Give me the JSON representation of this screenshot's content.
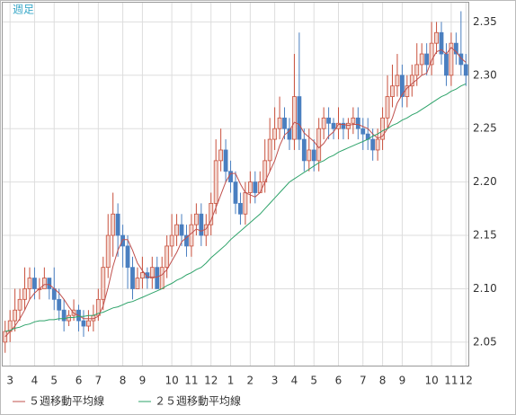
{
  "chart_data": {
    "type": "candlestick",
    "title": "週足",
    "categories": [
      null,
      "3",
      null,
      null,
      null,
      null,
      "4",
      null,
      null,
      null,
      "5",
      null,
      null,
      null,
      null,
      "6",
      null,
      null,
      null,
      "7",
      null,
      null,
      null,
      null,
      "8",
      null,
      null,
      null,
      "9",
      null,
      null,
      null,
      null,
      null,
      "10",
      null,
      null,
      null,
      "11",
      null,
      null,
      null,
      "12",
      null,
      null,
      null,
      "1",
      null,
      null,
      null,
      "2",
      null,
      null,
      null,
      null,
      "3",
      null,
      null,
      null,
      "4",
      null,
      null,
      null,
      "5",
      null,
      null,
      null,
      null,
      "6",
      null,
      null,
      null,
      null,
      "7",
      null,
      null,
      null,
      "8",
      null,
      null,
      null,
      "9",
      null,
      null,
      null,
      null,
      null,
      "10",
      null,
      null,
      null,
      "11",
      null,
      null,
      "12"
    ],
    "open": [
      2.05,
      2.06,
      2.07,
      2.08,
      2.09,
      2.1,
      2.11,
      2.1,
      2.1,
      2.11,
      2.1,
      2.09,
      2.08,
      2.07,
      2.075,
      2.08,
      2.07,
      2.065,
      2.07,
      2.075,
      2.09,
      2.12,
      2.15,
      2.17,
      2.15,
      2.14,
      2.12,
      2.1,
      2.11,
      2.115,
      2.11,
      2.12,
      2.1,
      2.12,
      2.14,
      2.15,
      2.16,
      2.15,
      2.14,
      2.16,
      2.17,
      2.15,
      2.16,
      2.18,
      2.22,
      2.23,
      2.21,
      2.2,
      2.18,
      2.17,
      2.19,
      2.2,
      2.19,
      2.2,
      2.22,
      2.24,
      2.25,
      2.26,
      2.25,
      2.24,
      2.28,
      2.24,
      2.22,
      2.23,
      2.22,
      2.25,
      2.26,
      2.255,
      2.25,
      2.255,
      2.25,
      2.255,
      2.26,
      2.25,
      2.245,
      2.24,
      2.23,
      2.24,
      2.26,
      2.28,
      2.29,
      2.3,
      2.28,
      2.29,
      2.3,
      2.31,
      2.32,
      2.31,
      2.33,
      2.34,
      2.32,
      2.3,
      2.33,
      2.32,
      2.31
    ],
    "high": [
      2.07,
      2.08,
      2.1,
      2.1,
      2.12,
      2.12,
      2.12,
      2.11,
      2.12,
      2.11,
      2.12,
      2.1,
      2.09,
      2.08,
      2.09,
      2.085,
      2.08,
      2.08,
      2.085,
      2.1,
      2.13,
      2.17,
      2.19,
      2.18,
      2.16,
      2.15,
      2.13,
      2.12,
      2.13,
      2.12,
      2.13,
      2.13,
      2.13,
      2.15,
      2.17,
      2.17,
      2.17,
      2.16,
      2.17,
      2.18,
      2.18,
      2.17,
      2.19,
      2.24,
      2.25,
      2.24,
      2.22,
      2.21,
      2.19,
      2.2,
      2.21,
      2.21,
      2.21,
      2.24,
      2.26,
      2.27,
      2.28,
      2.27,
      2.26,
      2.32,
      2.34,
      2.25,
      2.25,
      2.24,
      2.26,
      2.27,
      2.27,
      2.26,
      2.27,
      2.26,
      2.26,
      2.27,
      2.27,
      2.26,
      2.26,
      2.25,
      2.25,
      2.27,
      2.3,
      2.31,
      2.32,
      2.31,
      2.3,
      2.31,
      2.33,
      2.33,
      2.33,
      2.35,
      2.35,
      2.35,
      2.33,
      2.34,
      2.34,
      2.36,
      2.32
    ],
    "low": [
      2.04,
      2.05,
      2.06,
      2.07,
      2.08,
      2.09,
      2.09,
      2.09,
      2.1,
      2.09,
      2.08,
      2.07,
      2.06,
      2.065,
      2.07,
      2.06,
      2.055,
      2.06,
      2.06,
      2.07,
      2.08,
      2.11,
      2.13,
      2.13,
      2.12,
      2.1,
      2.09,
      2.1,
      2.1,
      2.1,
      2.1,
      2.1,
      2.1,
      2.11,
      2.13,
      2.14,
      2.14,
      2.13,
      2.13,
      2.15,
      2.14,
      2.14,
      2.15,
      2.17,
      2.21,
      2.2,
      2.19,
      2.17,
      2.16,
      2.16,
      2.18,
      2.18,
      2.19,
      2.19,
      2.21,
      2.23,
      2.24,
      2.24,
      2.23,
      2.23,
      2.23,
      2.21,
      2.21,
      2.21,
      2.21,
      2.24,
      2.24,
      2.24,
      2.24,
      2.24,
      2.24,
      2.245,
      2.24,
      2.23,
      2.23,
      2.22,
      2.22,
      2.23,
      2.25,
      2.27,
      2.28,
      2.27,
      2.27,
      2.28,
      2.29,
      2.3,
      2.3,
      2.3,
      2.32,
      2.31,
      2.29,
      2.29,
      2.31,
      2.3,
      2.29
    ],
    "close": [
      2.06,
      2.07,
      2.08,
      2.09,
      2.1,
      2.11,
      2.1,
      2.1,
      2.11,
      2.1,
      2.09,
      2.08,
      2.07,
      2.075,
      2.08,
      2.07,
      2.065,
      2.07,
      2.075,
      2.09,
      2.12,
      2.15,
      2.17,
      2.15,
      2.14,
      2.12,
      2.1,
      2.11,
      2.115,
      2.11,
      2.12,
      2.1,
      2.12,
      2.14,
      2.15,
      2.16,
      2.15,
      2.14,
      2.16,
      2.17,
      2.15,
      2.16,
      2.18,
      2.22,
      2.23,
      2.21,
      2.2,
      2.18,
      2.17,
      2.19,
      2.2,
      2.19,
      2.2,
      2.22,
      2.24,
      2.25,
      2.26,
      2.25,
      2.24,
      2.28,
      2.24,
      2.22,
      2.23,
      2.22,
      2.25,
      2.26,
      2.255,
      2.25,
      2.255,
      2.25,
      2.255,
      2.26,
      2.25,
      2.245,
      2.24,
      2.23,
      2.24,
      2.26,
      2.28,
      2.29,
      2.3,
      2.28,
      2.29,
      2.3,
      2.31,
      2.32,
      2.31,
      2.33,
      2.34,
      2.32,
      2.3,
      2.33,
      2.32,
      2.31,
      2.3
    ],
    "up_color": "#c8503c",
    "down_color": "#4a7fc0",
    "series": [
      {
        "name": "５週移動平均線",
        "color": "#c0504d",
        "values": [
          2.055,
          2.06,
          2.065,
          2.072,
          2.08,
          2.09,
          2.096,
          2.1,
          2.104,
          2.104,
          2.1,
          2.096,
          2.09,
          2.083,
          2.077,
          2.075,
          2.072,
          2.072,
          2.072,
          2.074,
          2.084,
          2.101,
          2.121,
          2.136,
          2.146,
          2.146,
          2.136,
          2.124,
          2.117,
          2.111,
          2.111,
          2.111,
          2.113,
          2.118,
          2.126,
          2.134,
          2.144,
          2.148,
          2.152,
          2.156,
          2.154,
          2.156,
          2.164,
          2.176,
          2.188,
          2.2,
          2.208,
          2.208,
          2.198,
          2.19,
          2.188,
          2.186,
          2.19,
          2.2,
          2.21,
          2.22,
          2.234,
          2.244,
          2.248,
          2.256,
          2.254,
          2.246,
          2.242,
          2.238,
          2.232,
          2.236,
          2.243,
          2.247,
          2.254,
          2.254,
          2.253,
          2.254,
          2.254,
          2.252,
          2.25,
          2.245,
          2.241,
          2.243,
          2.25,
          2.26,
          2.274,
          2.282,
          2.288,
          2.292,
          2.296,
          2.3,
          2.302,
          2.314,
          2.322,
          2.324,
          2.32,
          2.326,
          2.322,
          2.316,
          2.312
        ]
      },
      {
        "name": "２５週移動平均線",
        "color": "#2ea36a",
        "values": [
          2.06,
          2.061,
          2.063,
          2.064,
          2.066,
          2.067,
          2.069,
          2.07,
          2.07,
          2.071,
          2.071,
          2.072,
          2.072,
          2.073,
          2.073,
          2.074,
          2.074,
          2.075,
          2.075,
          2.077,
          2.078,
          2.08,
          2.082,
          2.083,
          2.085,
          2.087,
          2.088,
          2.09,
          2.092,
          2.094,
          2.096,
          2.098,
          2.1,
          2.103,
          2.105,
          2.108,
          2.11,
          2.113,
          2.115,
          2.118,
          2.12,
          2.124,
          2.129,
          2.133,
          2.137,
          2.141,
          2.146,
          2.15,
          2.154,
          2.158,
          2.162,
          2.166,
          2.17,
          2.175,
          2.18,
          2.185,
          2.19,
          2.195,
          2.2,
          2.203,
          2.206,
          2.209,
          2.212,
          2.215,
          2.218,
          2.22,
          2.223,
          2.225,
          2.228,
          2.23,
          2.232,
          2.234,
          2.236,
          2.238,
          2.24,
          2.243,
          2.245,
          2.248,
          2.25,
          2.253,
          2.255,
          2.258,
          2.26,
          2.263,
          2.265,
          2.268,
          2.271,
          2.274,
          2.277,
          2.28,
          2.282,
          2.285,
          2.287,
          2.29,
          2.292
        ]
      }
    ],
    "ylim": [
      2.028,
      2.368
    ],
    "yticks": [
      2.05,
      {
        "value": 2.1,
        "label": "2.10"
      },
      2.15,
      {
        "value": 2.2,
        "label": "2.20"
      },
      2.25,
      {
        "value": 2.3,
        "label": "2.30"
      },
      2.35
    ],
    "grid": true
  }
}
